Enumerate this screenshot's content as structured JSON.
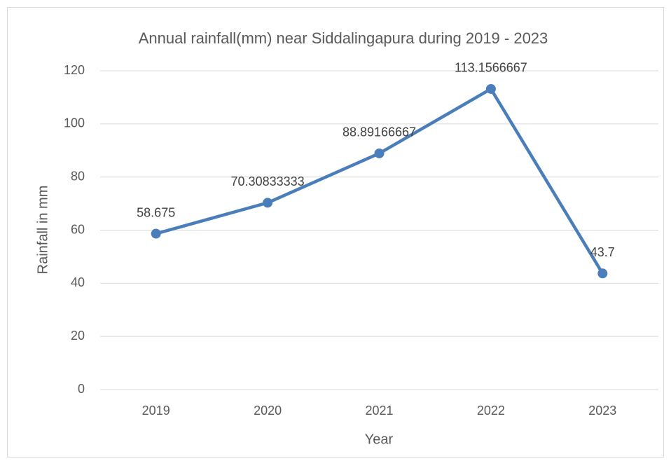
{
  "chart_data": {
    "type": "line",
    "title": "Annual rainfall(mm) near Siddalingapura during 2019 - 2023",
    "x_label": "Year",
    "y_label": "Rainfall in mm",
    "categories": [
      "2019",
      "2020",
      "2021",
      "2022",
      "2023"
    ],
    "series": [
      {
        "name": "Rainfall in mm",
        "color": "#4a7ebb",
        "values": [
          58.675,
          70.30833333,
          88.89166667,
          113.1566667,
          43.7
        ]
      }
    ],
    "ylim": [
      0,
      120
    ],
    "yticks": [
      0,
      20,
      40,
      60,
      80,
      100,
      120
    ],
    "grid": true,
    "data_labels": true,
    "legend": false
  }
}
